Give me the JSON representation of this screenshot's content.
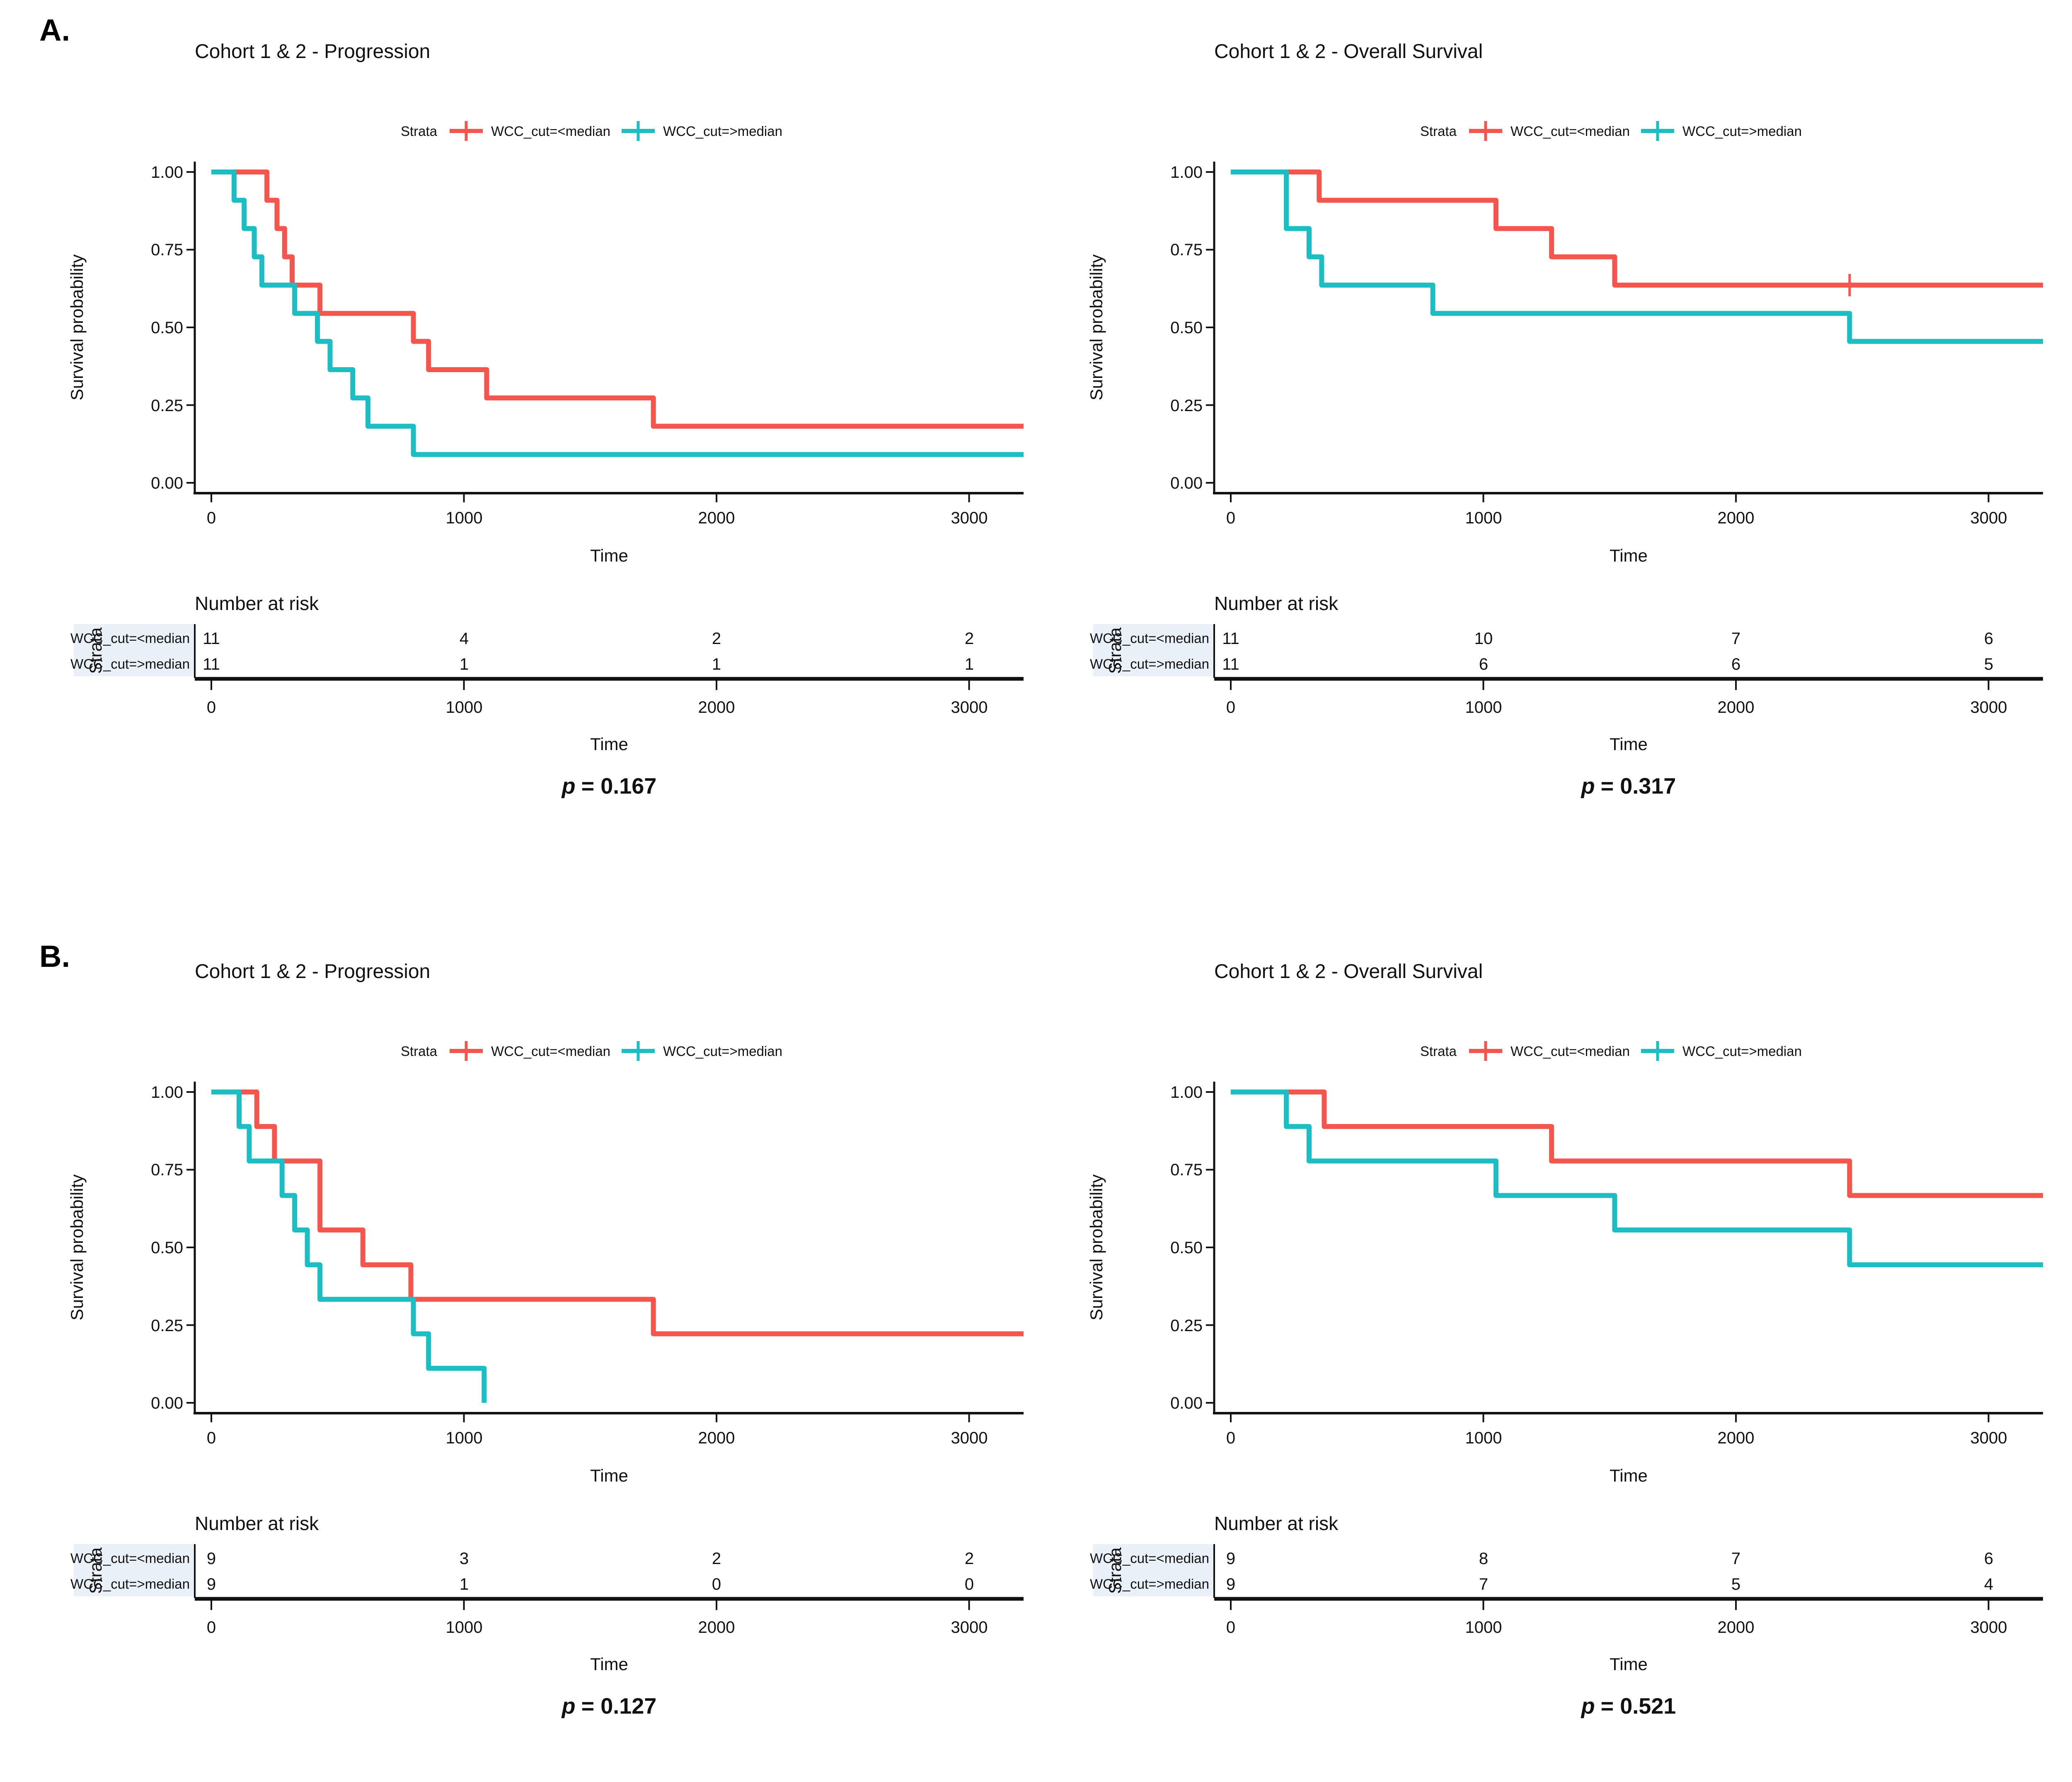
{
  "page": {
    "sections": [
      {
        "label": "A."
      },
      {
        "label": "B."
      }
    ]
  },
  "chart_data": [
    {
      "type": "line",
      "subtype": "kaplan-meier-step",
      "panel": "A",
      "position": "left",
      "title": "Cohort 1 & 2 - Progression",
      "legend_title": "Strata",
      "legend_position": "top",
      "grid": false,
      "xlabel": "Time",
      "ylabel": "Survival probability",
      "xlim": [
        0,
        3150
      ],
      "ylim": [
        0,
        1
      ],
      "xticks": [
        0,
        1000,
        2000,
        3000
      ],
      "xtick_labels": [
        "0",
        "1000",
        "2000",
        "3000"
      ],
      "yticks": [
        1.0,
        0.75,
        0.5,
        0.25,
        0.0
      ],
      "ytick_labels": [
        "1.00",
        "0.75",
        "0.50",
        "0.25",
        "0.00"
      ],
      "series": [
        {
          "name": "WCC_cut=<median",
          "color": "#F4564E",
          "end": "edge",
          "step_points": [
            [
              0,
              1.0
            ],
            [
              220,
              0.909
            ],
            [
              260,
              0.818
            ],
            [
              290,
              0.727
            ],
            [
              320,
              0.636
            ],
            [
              430,
              0.545
            ],
            [
              800,
              0.455
            ],
            [
              860,
              0.364
            ],
            [
              1090,
              0.273
            ],
            [
              1750,
              0.182
            ],
            [
              3150,
              0.182
            ]
          ],
          "censor_times": []
        },
        {
          "name": "WCC_cut=>median",
          "color": "#1CBEC3",
          "end": "edge",
          "step_points": [
            [
              0,
              1.0
            ],
            [
              90,
              0.909
            ],
            [
              130,
              0.818
            ],
            [
              170,
              0.727
            ],
            [
              200,
              0.636
            ],
            [
              330,
              0.545
            ],
            [
              420,
              0.455
            ],
            [
              470,
              0.364
            ],
            [
              560,
              0.273
            ],
            [
              620,
              0.182
            ],
            [
              800,
              0.091
            ],
            [
              3150,
              0.091
            ]
          ],
          "censor_times": []
        }
      ],
      "number_at_risk": {
        "heading": "Number at risk",
        "axis_label": "Strata",
        "time_points": [
          0,
          1000,
          2000,
          3000
        ],
        "rows": [
          {
            "label": "WCC_cut=<median",
            "counts": [
              11,
              4,
              2,
              2
            ]
          },
          {
            "label": "WCC_cut=>median",
            "counts": [
              11,
              1,
              1,
              1
            ]
          }
        ]
      },
      "p_label": "p",
      "p_value": "= 0.167"
    },
    {
      "type": "line",
      "subtype": "kaplan-meier-step",
      "panel": "A",
      "position": "right",
      "title": "Cohort 1 & 2 - Overall Survival",
      "legend_title": "Strata",
      "legend_position": "top",
      "grid": false,
      "xlabel": "Time",
      "ylabel": "Survival probability",
      "xlim": [
        0,
        3150
      ],
      "ylim": [
        0,
        1
      ],
      "xticks": [
        0,
        1000,
        2000,
        3000
      ],
      "xtick_labels": [
        "0",
        "1000",
        "2000",
        "3000"
      ],
      "yticks": [
        1.0,
        0.75,
        0.5,
        0.25,
        0.0
      ],
      "ytick_labels": [
        "1.00",
        "0.75",
        "0.50",
        "0.25",
        "0.00"
      ],
      "series": [
        {
          "name": "WCC_cut=<median",
          "color": "#F4564E",
          "end": "edge",
          "step_points": [
            [
              0,
              1.0
            ],
            [
              350,
              0.909
            ],
            [
              1050,
              0.818
            ],
            [
              1270,
              0.727
            ],
            [
              1520,
              0.636
            ],
            [
              3150,
              0.636
            ]
          ],
          "censor_times": [
            2450
          ]
        },
        {
          "name": "WCC_cut=>median",
          "color": "#1CBEC3",
          "end": "edge",
          "step_points": [
            [
              0,
              1.0
            ],
            [
              220,
              0.818
            ],
            [
              310,
              0.727
            ],
            [
              360,
              0.636
            ],
            [
              800,
              0.545
            ],
            [
              2450,
              0.455
            ],
            [
              3150,
              0.455
            ]
          ],
          "censor_times": []
        }
      ],
      "number_at_risk": {
        "heading": "Number at risk",
        "axis_label": "Strata",
        "time_points": [
          0,
          1000,
          2000,
          3000
        ],
        "rows": [
          {
            "label": "WCC_cut=<median",
            "counts": [
              11,
              10,
              7,
              6
            ]
          },
          {
            "label": "WCC_cut=>median",
            "counts": [
              11,
              6,
              6,
              5
            ]
          }
        ]
      },
      "p_label": "p",
      "p_value": "= 0.317"
    },
    {
      "type": "line",
      "subtype": "kaplan-meier-step",
      "panel": "B",
      "position": "left",
      "title": "Cohort 1 & 2 - Progression",
      "legend_title": "Strata",
      "legend_position": "top",
      "grid": false,
      "xlabel": "Time",
      "ylabel": "Survival probability",
      "xlim": [
        0,
        3150
      ],
      "ylim": [
        0,
        1
      ],
      "xticks": [
        0,
        1000,
        2000,
        3000
      ],
      "xtick_labels": [
        "0",
        "1000",
        "2000",
        "3000"
      ],
      "yticks": [
        1.0,
        0.75,
        0.5,
        0.25,
        0.0
      ],
      "ytick_labels": [
        "1.00",
        "0.75",
        "0.50",
        "0.25",
        "0.00"
      ],
      "series": [
        {
          "name": "WCC_cut=<median",
          "color": "#F4564E",
          "end": "edge",
          "step_points": [
            [
              0,
              1.0
            ],
            [
              180,
              0.889
            ],
            [
              250,
              0.778
            ],
            [
              430,
              0.556
            ],
            [
              600,
              0.444
            ],
            [
              790,
              0.333
            ],
            [
              1750,
              0.222
            ],
            [
              3150,
              0.222
            ]
          ],
          "censor_times": []
        },
        {
          "name": "WCC_cut=>median",
          "color": "#1CBEC3",
          "end": "event",
          "step_points": [
            [
              0,
              1.0
            ],
            [
              110,
              0.889
            ],
            [
              150,
              0.778
            ],
            [
              280,
              0.667
            ],
            [
              330,
              0.556
            ],
            [
              380,
              0.444
            ],
            [
              430,
              0.333
            ],
            [
              800,
              0.222
            ],
            [
              860,
              0.111
            ],
            [
              1080,
              0.0
            ]
          ],
          "censor_times": []
        }
      ],
      "number_at_risk": {
        "heading": "Number at risk",
        "axis_label": "Strata",
        "time_points": [
          0,
          1000,
          2000,
          3000
        ],
        "rows": [
          {
            "label": "WCC_cut=<median",
            "counts": [
              9,
              3,
              2,
              2
            ]
          },
          {
            "label": "WCC_cut=>median",
            "counts": [
              9,
              1,
              0,
              0
            ]
          }
        ]
      },
      "p_label": "p",
      "p_value": "= 0.127"
    },
    {
      "type": "line",
      "subtype": "kaplan-meier-step",
      "panel": "B",
      "position": "right",
      "title": "Cohort 1 & 2 - Overall Survival",
      "legend_title": "Strata",
      "legend_position": "top",
      "grid": false,
      "xlabel": "Time",
      "ylabel": "Survival probability",
      "xlim": [
        0,
        3150
      ],
      "ylim": [
        0,
        1
      ],
      "xticks": [
        0,
        1000,
        2000,
        3000
      ],
      "xtick_labels": [
        "0",
        "1000",
        "2000",
        "3000"
      ],
      "yticks": [
        1.0,
        0.75,
        0.5,
        0.25,
        0.0
      ],
      "ytick_labels": [
        "1.00",
        "0.75",
        "0.50",
        "0.25",
        "0.00"
      ],
      "series": [
        {
          "name": "WCC_cut=<median",
          "color": "#F4564E",
          "end": "edge",
          "step_points": [
            [
              0,
              1.0
            ],
            [
              370,
              0.889
            ],
            [
              1270,
              0.778
            ],
            [
              2450,
              0.667
            ],
            [
              3150,
              0.667
            ]
          ],
          "censor_times": []
        },
        {
          "name": "WCC_cut=>median",
          "color": "#1CBEC3",
          "end": "edge",
          "step_points": [
            [
              0,
              1.0
            ],
            [
              220,
              0.889
            ],
            [
              310,
              0.778
            ],
            [
              1050,
              0.667
            ],
            [
              1520,
              0.556
            ],
            [
              2450,
              0.444
            ],
            [
              3150,
              0.444
            ]
          ],
          "censor_times": []
        }
      ],
      "number_at_risk": {
        "heading": "Number at risk",
        "axis_label": "Strata",
        "time_points": [
          0,
          1000,
          2000,
          3000
        ],
        "rows": [
          {
            "label": "WCC_cut=<median",
            "counts": [
              9,
              8,
              7,
              6
            ]
          },
          {
            "label": "WCC_cut=>median",
            "counts": [
              9,
              7,
              5,
              4
            ]
          }
        ]
      },
      "p_label": "p",
      "p_value": "= 0.521"
    }
  ]
}
